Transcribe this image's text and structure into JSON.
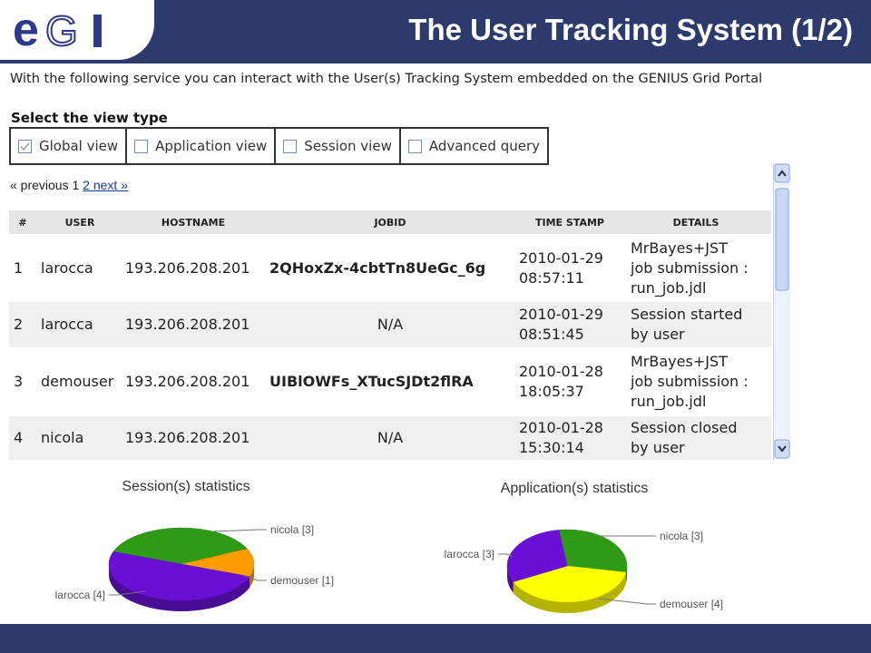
{
  "header": {
    "title": "The User Tracking System (1/2)"
  },
  "intro": "With the following service you can interact with the User(s) Tracking System embedded on the GENIUS Grid Portal",
  "view_type": {
    "label": "Select the view type",
    "options": [
      "Global view",
      "Application view",
      "Session view",
      "Advanced query"
    ]
  },
  "pagination": {
    "prev": "« previous 1",
    "next": "2 next »"
  },
  "table": {
    "headers": [
      "#",
      "USER",
      "HOSTNAME",
      "JOBID",
      "TIME STAMP",
      "DETAILS"
    ],
    "rows": [
      [
        "1",
        "larocca",
        "193.206.208.201",
        "2QHoxZx-4cbtTn8UeGc_6g",
        "2010-01-29 08:57:11",
        [
          "MrBayes+JST",
          "job submission :",
          "run_job.jdl"
        ]
      ],
      [
        "2",
        "larocca",
        "193.206.208.201",
        "N/A",
        "2010-01-29 08:51:45",
        [
          "Session started",
          "by user"
        ]
      ],
      [
        "3",
        "demouser",
        "193.206.208.201",
        "UIBlOWFs_XTucSJDt2flRA",
        "2010-01-28 18:05:37",
        [
          "MrBayes+JST",
          "job submission :",
          "run_job.jdl"
        ]
      ],
      [
        "4",
        "nicola",
        "193.206.208.201",
        "N/A",
        "2010-01-28 15:30:14",
        [
          "Session closed",
          "by user"
        ]
      ]
    ]
  },
  "chart_data": [
    {
      "type": "pie",
      "title": "Session(s) statistics",
      "values": [
        3,
        1,
        4
      ],
      "value_labels": [
        "nicola [3]",
        "demouser [1]",
        "larocca [4]"
      ],
      "colors": [
        "#2f9a16",
        "#ff9c00",
        "#6a0fd6"
      ]
    },
    {
      "type": "pie",
      "title": "Application(s) statistics",
      "values": [
        3,
        4,
        3
      ],
      "value_labels": [
        "nicola [3]",
        "demouser [4]",
        "larocca [3]"
      ],
      "colors": [
        "#2f9a16",
        "#ffff00",
        "#6a0fd6"
      ]
    }
  ]
}
